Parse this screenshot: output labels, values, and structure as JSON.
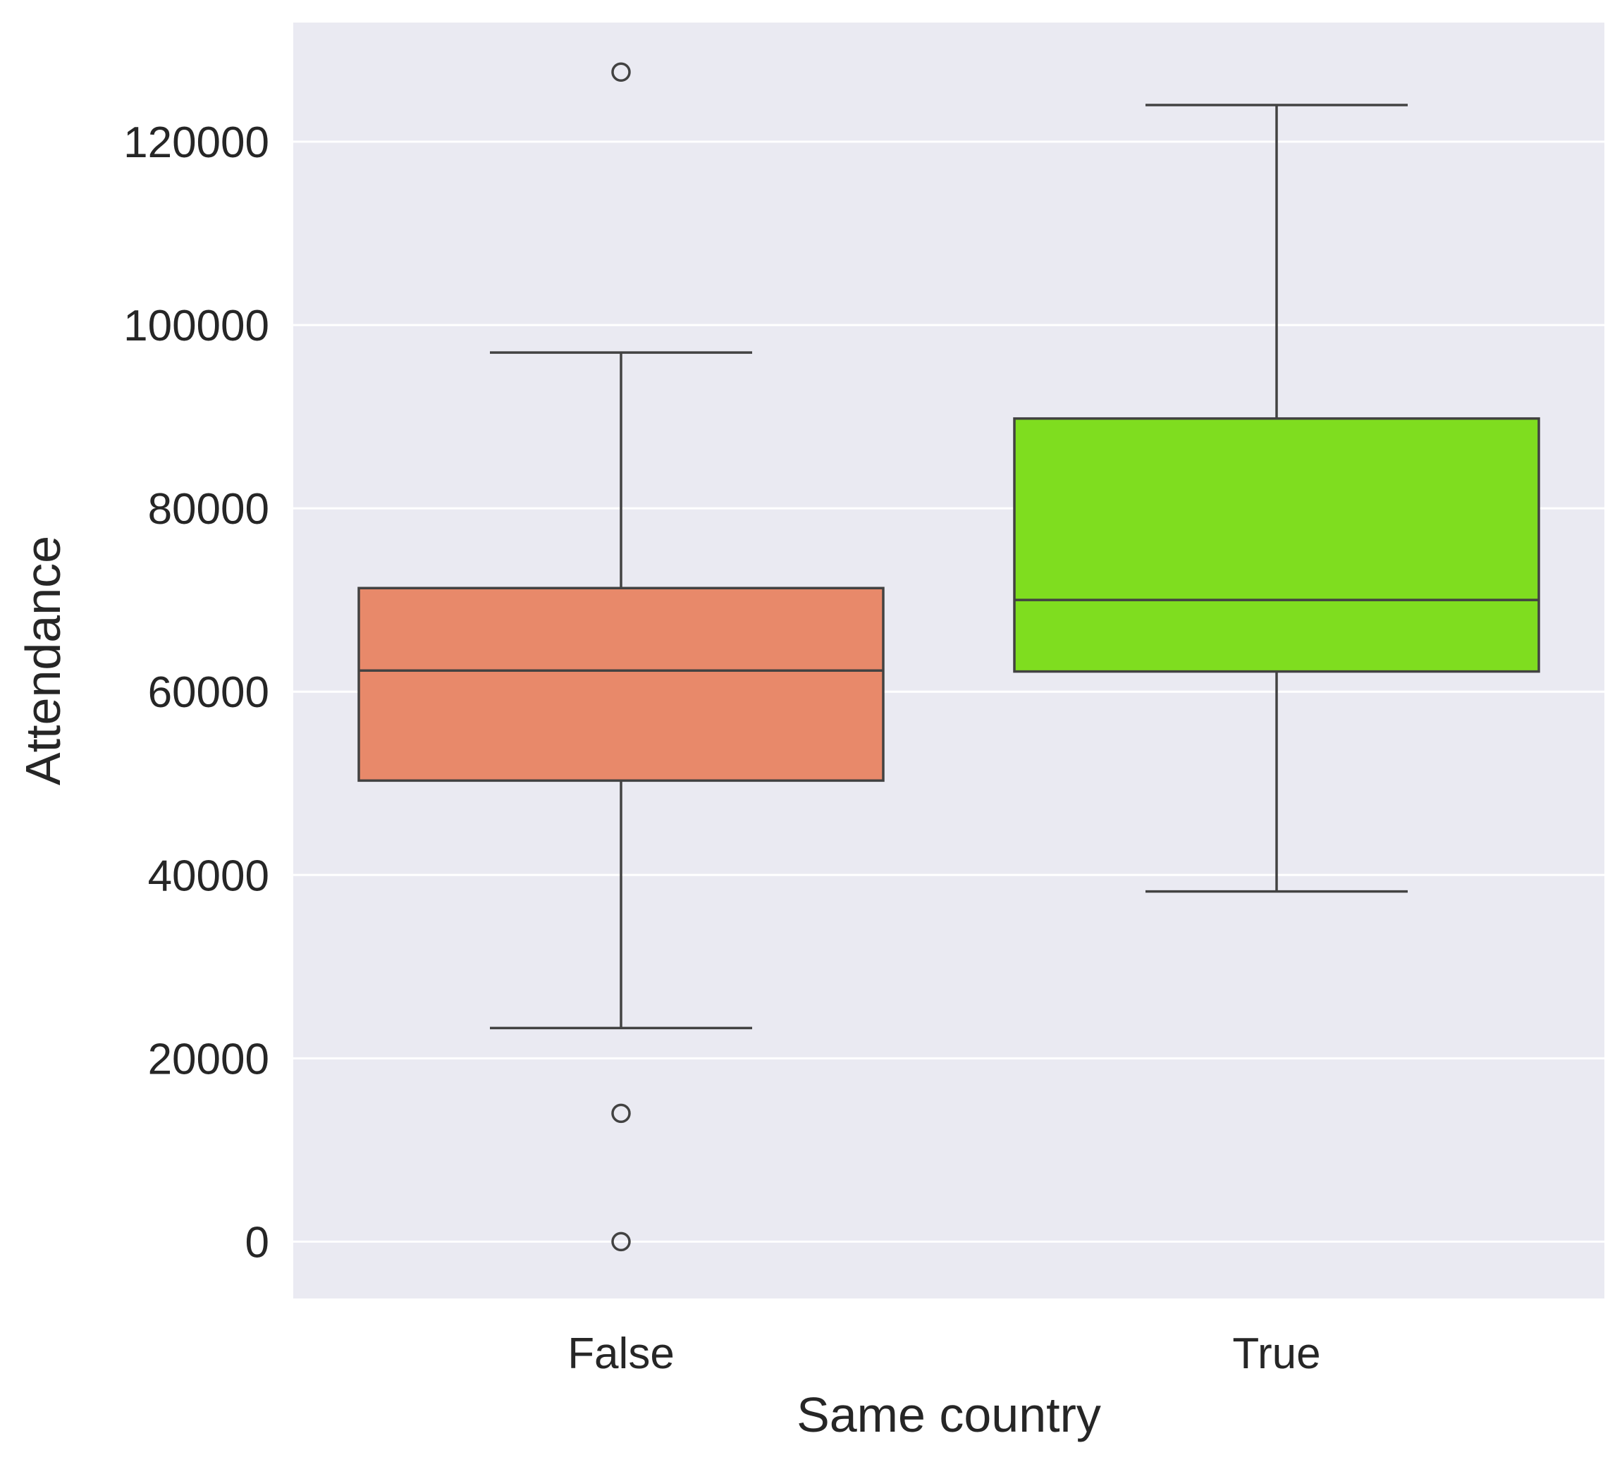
{
  "chart_data": {
    "type": "box",
    "xlabel": "Same country",
    "ylabel": "Attendance",
    "ylim": [
      -6200,
      133000
    ],
    "yticks": [
      0,
      20000,
      40000,
      60000,
      80000,
      100000,
      120000
    ],
    "ytick_labels": [
      "0",
      "20000",
      "40000",
      "60000",
      "80000",
      "100000",
      "120000"
    ],
    "grid": true,
    "categories": [
      "False",
      "True"
    ],
    "boxes": [
      {
        "category": "False",
        "color": "#E8896A",
        "whisker_low": 23300,
        "q1": 50300,
        "median": 62300,
        "q3": 71300,
        "whisker_high": 97000,
        "outliers": [
          127600,
          14000,
          0
        ]
      },
      {
        "category": "True",
        "color": "#7FDD1F",
        "whisker_low": 38200,
        "q1": 62200,
        "median": 70000,
        "q3": 89800,
        "whisker_high": 124000,
        "outliers": []
      }
    ],
    "colors": {
      "background": "#EAEAF2",
      "grid": "#FFFFFF",
      "line": "#424242"
    }
  }
}
